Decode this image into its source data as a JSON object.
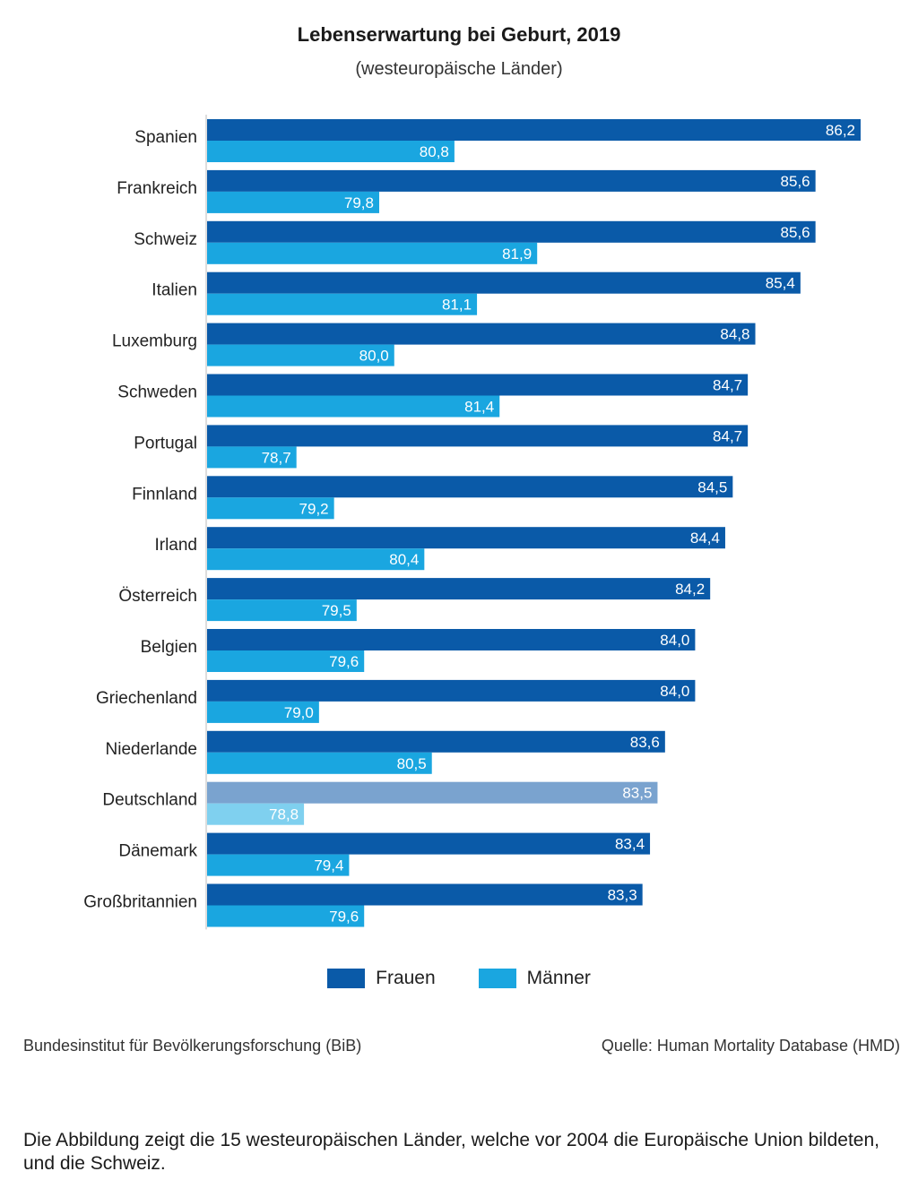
{
  "chart_data": {
    "type": "bar",
    "orientation": "horizontal",
    "title": "Lebenserwartung bei Geburt, 2019",
    "subtitle": "(westeuropäische Länder)",
    "categories": [
      "Spanien",
      "Frankreich",
      "Schweiz",
      "Italien",
      "Luxemburg",
      "Schweden",
      "Portugal",
      "Finnland",
      "Irland",
      "Österreich",
      "Belgien",
      "Griechenland",
      "Niederlande",
      "Deutschland",
      "Dänemark",
      "Großbritannien"
    ],
    "series": [
      {
        "name": "Frauen",
        "color": "#0a5aa8",
        "values": [
          86.2,
          85.6,
          85.6,
          85.4,
          84.8,
          84.7,
          84.7,
          84.5,
          84.4,
          84.2,
          84.0,
          84.0,
          83.6,
          83.5,
          83.4,
          83.3
        ]
      },
      {
        "name": "Männer",
        "color": "#1aa6e0",
        "values": [
          80.8,
          79.8,
          81.9,
          81.1,
          80.0,
          81.4,
          78.7,
          79.2,
          80.4,
          79.5,
          79.6,
          79.0,
          80.5,
          78.8,
          79.4,
          79.6
        ]
      }
    ],
    "labels": {
      "Frauen": [
        "86,2",
        "85,6",
        "85,6",
        "85,4",
        "84,8",
        "84,7",
        "84,7",
        "84,5",
        "84,4",
        "84,2",
        "84,0",
        "84,0",
        "83,6",
        "83,5",
        "83,4",
        "83,3"
      ],
      "Männer": [
        "80,8",
        "79,8",
        "81,9",
        "81,1",
        "80,0",
        "81,4",
        "78,7",
        "79,2",
        "80,4",
        "79,5",
        "79,6",
        "79,0",
        "80,5",
        "78,8",
        "79,4",
        "79,6"
      ]
    },
    "highlight": {
      "category": "Deutschland",
      "colors": {
        "Frauen": "#7aa3cf",
        "Männer": "#7fd0ef"
      }
    },
    "xlim": [
      77.5,
      86.5
    ],
    "grid": false,
    "legend": "bottom-center"
  },
  "source_left": "Bundesinstitut für Bevölkerungsforschung (BiB)",
  "source_right": "Quelle: Human Mortality Database (HMD)",
  "caption": "Die Abbildung zeigt die 15 westeuropäischen Länder, welche vor 2004 die Europäische Union bildeten, und die Schweiz."
}
